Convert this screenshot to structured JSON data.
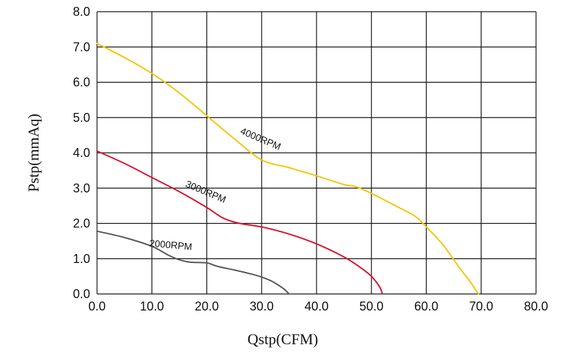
{
  "chart_data": {
    "type": "line",
    "xlabel": "Qstp(CFM)",
    "ylabel": "Pstp(mmAq)",
    "xlim": [
      0,
      80
    ],
    "ylim": [
      0,
      8
    ],
    "x_ticks": [
      "0.0",
      "10.0",
      "20.0",
      "30.0",
      "40.0",
      "50.0",
      "60.0",
      "70.0",
      "80.0"
    ],
    "y_ticks": [
      "0.0",
      "1.0",
      "2.0",
      "3.0",
      "4.0",
      "5.0",
      "6.0",
      "7.0",
      "8.0"
    ],
    "grid": true,
    "series": [
      {
        "name": "4000RPM",
        "color": "#f5c400",
        "points": [
          [
            0,
            7.1
          ],
          [
            5,
            6.7
          ],
          [
            10,
            6.25
          ],
          [
            15,
            5.7
          ],
          [
            20,
            5.05
          ],
          [
            25,
            4.4
          ],
          [
            30,
            3.8
          ],
          [
            35,
            3.58
          ],
          [
            40,
            3.35
          ],
          [
            45,
            3.1
          ],
          [
            47,
            3.05
          ],
          [
            50,
            2.85
          ],
          [
            55,
            2.45
          ],
          [
            58,
            2.2
          ],
          [
            60,
            1.9
          ],
          [
            63,
            1.4
          ],
          [
            66,
            0.75
          ],
          [
            68,
            0.35
          ],
          [
            69.5,
            0.0
          ]
        ]
      },
      {
        "name": "3000RPM",
        "color": "#d8102a",
        "points": [
          [
            0,
            4.05
          ],
          [
            5,
            3.7
          ],
          [
            10,
            3.3
          ],
          [
            15,
            2.9
          ],
          [
            20,
            2.45
          ],
          [
            23,
            2.15
          ],
          [
            26,
            2.0
          ],
          [
            30,
            1.9
          ],
          [
            35,
            1.7
          ],
          [
            40,
            1.42
          ],
          [
            45,
            1.05
          ],
          [
            48,
            0.75
          ],
          [
            50,
            0.5
          ],
          [
            51.5,
            0.2
          ],
          [
            52,
            0.0
          ]
        ]
      },
      {
        "name": "2000RPM",
        "color": "#555555",
        "points": [
          [
            0,
            1.78
          ],
          [
            5,
            1.6
          ],
          [
            10,
            1.35
          ],
          [
            13,
            1.1
          ],
          [
            15,
            0.97
          ],
          [
            17,
            0.9
          ],
          [
            20,
            0.88
          ],
          [
            22,
            0.78
          ],
          [
            25,
            0.68
          ],
          [
            28,
            0.57
          ],
          [
            30,
            0.48
          ],
          [
            32,
            0.35
          ],
          [
            34,
            0.15
          ],
          [
            35,
            0.0
          ]
        ]
      }
    ],
    "labels": [
      {
        "series": "4000RPM",
        "text": "4000RPM",
        "x": 26,
        "y": 4.55,
        "angle": 23
      },
      {
        "series": "3000RPM",
        "text": "3000RPM",
        "x": 16,
        "y": 3.05,
        "angle": 23
      },
      {
        "series": "2000RPM",
        "text": "2000RPM",
        "x": 9.5,
        "y": 1.35,
        "angle": 5
      }
    ]
  }
}
